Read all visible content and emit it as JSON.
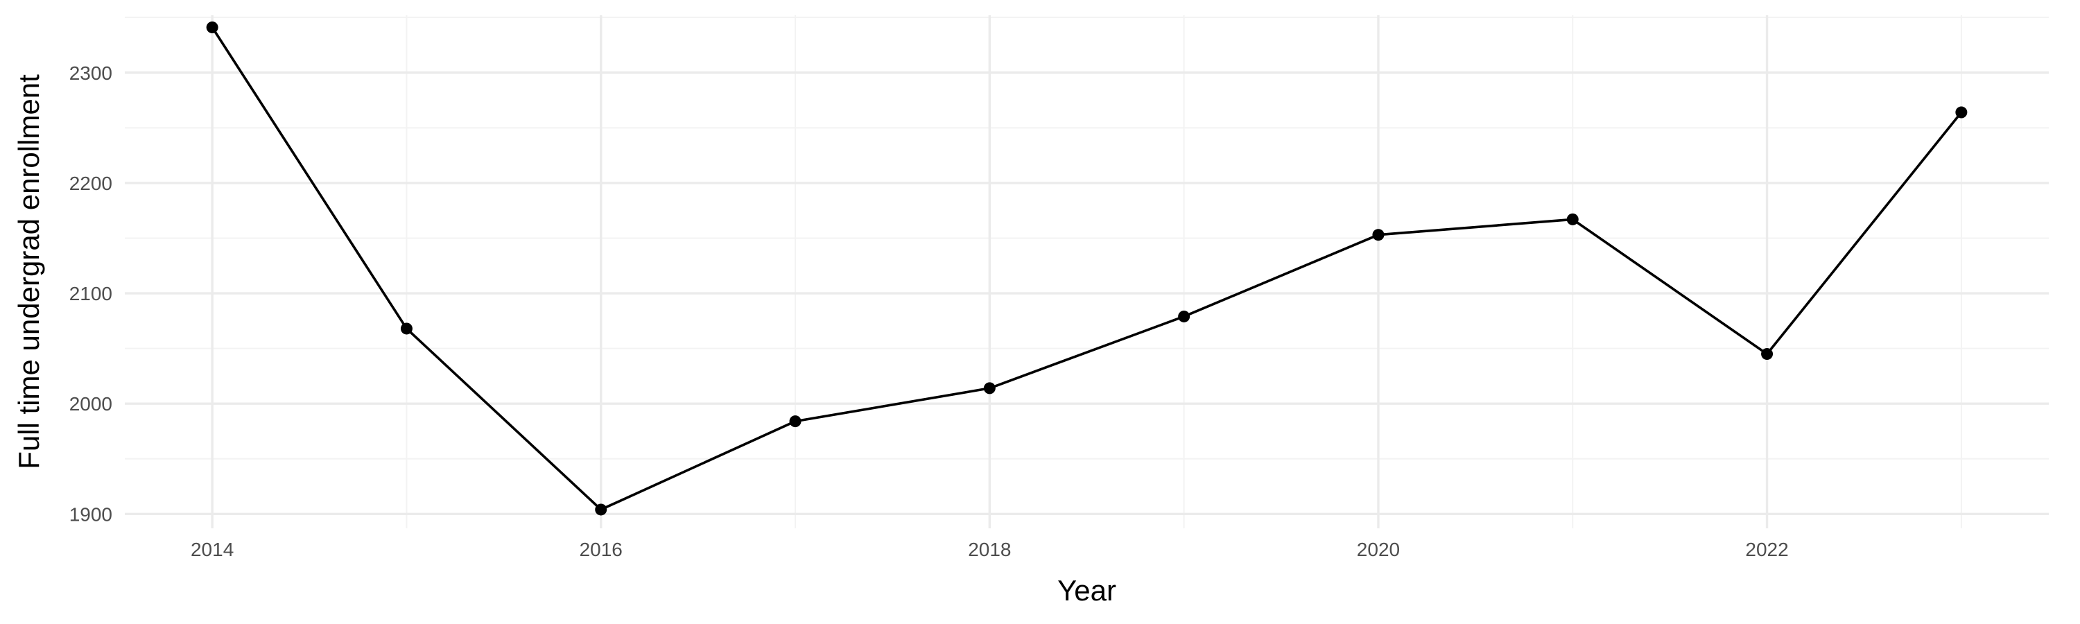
{
  "chart_data": {
    "type": "line",
    "title": "",
    "xlabel": "Year",
    "ylabel": "Full time undergrad enrollment",
    "x": [
      2014,
      2015,
      2016,
      2017,
      2018,
      2019,
      2020,
      2021,
      2022,
      2023
    ],
    "series": [
      {
        "values": [
          2341,
          2068,
          1904,
          1984,
          2014,
          2079,
          2153,
          2167,
          2045,
          2264
        ]
      }
    ],
    "xlim": [
      2013.55,
      2023.45
    ],
    "ylim": [
      1887,
      2352
    ],
    "x_ticks": [
      2014,
      2016,
      2018,
      2020,
      2022
    ],
    "x_tick_labels": [
      "2014",
      "2016",
      "2018",
      "2020",
      "2022"
    ],
    "y_ticks": [
      1900,
      2000,
      2100,
      2200,
      2300
    ],
    "y_tick_labels": [
      "1900",
      "2000",
      "2100",
      "2200",
      "2300"
    ],
    "grid": true,
    "legend": "none",
    "colors": {
      "line": "#000000",
      "point": "#000000",
      "grid": "#ebebeb",
      "background": "#ffffff",
      "tick_text": "#4d4d4d"
    }
  }
}
